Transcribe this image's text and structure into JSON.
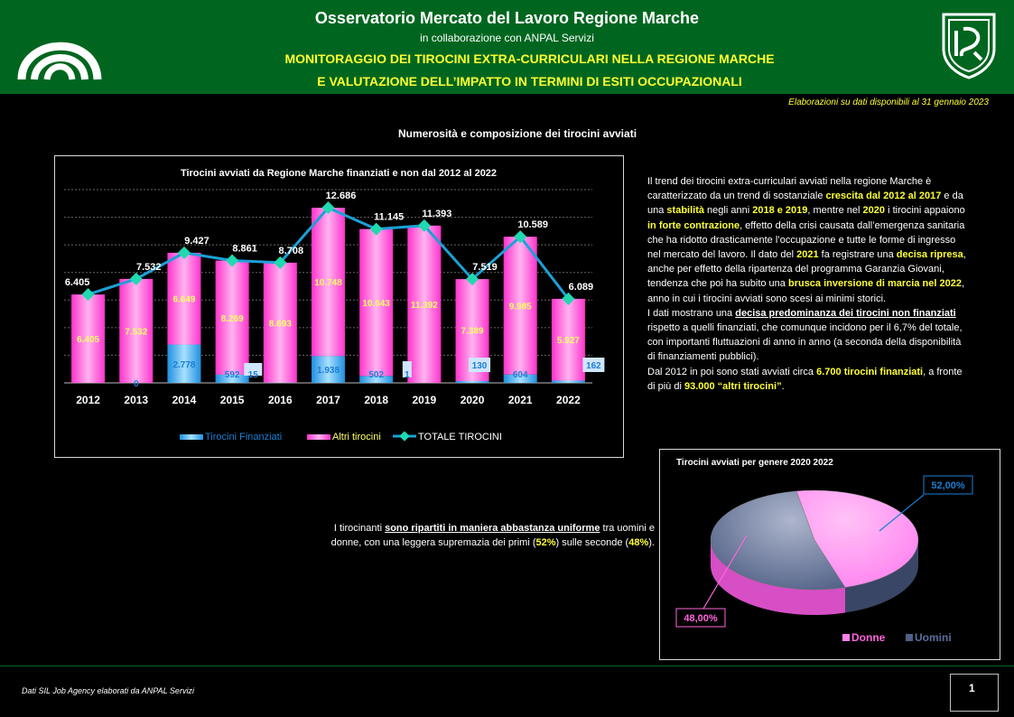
{
  "header": {
    "title": "Osservatorio Mercato del Lavoro Regione Marche",
    "subtitle": "in collaborazione con ANPAL Servizi",
    "monitoring_line1": "MONITORAGGIO DEI TIROCINI EXTRA-CURRICULARI NELLA REGIONE MARCHE",
    "monitoring_line2": "E VALUTAZIONE DELL’IMPATTO IN TERMINI DI ESITI OCCUPAZIONALI",
    "bg_color": "#00661f",
    "accent_color": "#ffff33"
  },
  "elaboration_note": "Elaborazioni su dati disponibili al 31 gennaio 2023",
  "section_title": "Numerosità e composizione dei tirocini avviati",
  "chart_data": [
    {
      "type": "bar",
      "title": "Tirocini avviati da Regione Marche  finanziati e non dal 2012 al 2022",
      "categories": [
        "2012",
        "2013",
        "2014",
        "2015",
        "2016",
        "2017",
        "2018",
        "2019",
        "2020",
        "2021",
        "2022"
      ],
      "series": [
        {
          "name": "Tirocini Finanziati",
          "type": "stacked-bar",
          "color": "#4db8ff",
          "values": [
            0,
            0,
            2778,
            592,
            15,
            1938,
            502,
            1,
            130,
            604,
            162
          ],
          "labels": [
            "",
            "0",
            "2.778",
            "592",
            "15",
            "1.938",
            "502",
            "1",
            "130",
            "604",
            "162"
          ]
        },
        {
          "name": "Altri tirocini",
          "type": "stacked-bar",
          "color": "#ff66dd",
          "values": [
            6405,
            7532,
            6649,
            8269,
            8693,
            10748,
            10643,
            11392,
            7389,
            9985,
            5927
          ],
          "labels": [
            "6.405",
            "7.532",
            "6.649",
            "8.269",
            "8.693",
            "10.748",
            "10.643",
            "11.392",
            "7.389",
            "9.985",
            "5.927"
          ]
        },
        {
          "name": "TOTALE TIROCINI",
          "type": "line",
          "color": "#1ca0d6",
          "marker_color": "#20d9b0",
          "values": [
            6405,
            7532,
            9427,
            8861,
            8708,
            12686,
            11145,
            11393,
            7519,
            10589,
            6089
          ],
          "labels": [
            "6.405",
            "7.532",
            "9.427",
            "8.861",
            "8.708",
            "12.686",
            "11.145",
            "11.393",
            "7.519",
            "10.589",
            "6.089"
          ]
        }
      ],
      "ylim": [
        0,
        14000
      ],
      "grid": true,
      "legend": "bottom"
    },
    {
      "type": "pie",
      "title": "Tirocini avviati per genere 2020 2022",
      "categories": [
        "Donne",
        "Uomini"
      ],
      "values": [
        48.0,
        52.0
      ],
      "labels": [
        "48,00%",
        "52,00%"
      ],
      "colors": [
        "#ff80f0",
        "#4f5f85"
      ],
      "legend": "bottom"
    }
  ],
  "text_block": {
    "p1_a": "Il trend dei tirocini extra-curriculari avviati nella regione Marche è caratterizzato da un trend di sostanziale ",
    "p1_b": "crescita dal 2012 al 2017",
    "p1_c": " e da una ",
    "p1_d": "stabilità",
    "p1_e": " negli anni ",
    "p1_f": "2018 e 2019",
    "p1_g": ", mentre nel ",
    "p1_h": "2020",
    "p1_i": " i tirocini appaiono ",
    "p1_j": "in forte contrazione",
    "p1_k": ", effetto della crisi causata dall’emergenza sanitaria che ha ridotto drasticamente l’occupazione e tutte le forme di ingresso nel mercato del lavoro. Il dato del ",
    "p1_l": "2021",
    "p1_m": " fa registrare una ",
    "p1_n": "decisa ripresa",
    "p1_o": ", anche per effetto della ripartenza del programma Garanzia Giovani, tendenza che poi ha subito una ",
    "p1_p": "brusca inversione di marcia nel 2022",
    "p1_q": ", anno in cui i tirocini avviati sono scesi ai minimi storici.",
    "p2_a": "I dati mostrano una ",
    "p2_b": "decisa predominanza dei tirocini non finanziati",
    "p2_c": " rispetto a quelli finanziati, che comunque incidono per il 6,7% del totale, con importanti fluttuazioni di anno in anno (a seconda della disponibilità di finanziamenti pubblici).",
    "p3_a": "Dal 2012 in poi sono stati avviati circa ",
    "p3_b": "6.700 tirocini finanziati",
    "p3_c": ", a fronte di più di ",
    "p3_d": "93.000 “altri tirocini”",
    "p3_e": "."
  },
  "gender_text": {
    "a": "I tirocinanti ",
    "b": "sono ripartiti in maniera abbastanza uniforme",
    "c": " tra uomini e donne, con una leggera supremazia dei primi (",
    "d": "52%",
    "e": ") sulle seconde (",
    "f": "48%",
    "g": ")."
  },
  "footer": {
    "source": "Dati SIL Job Agency elaborati da ANPAL Servizi",
    "page_number": "1"
  }
}
